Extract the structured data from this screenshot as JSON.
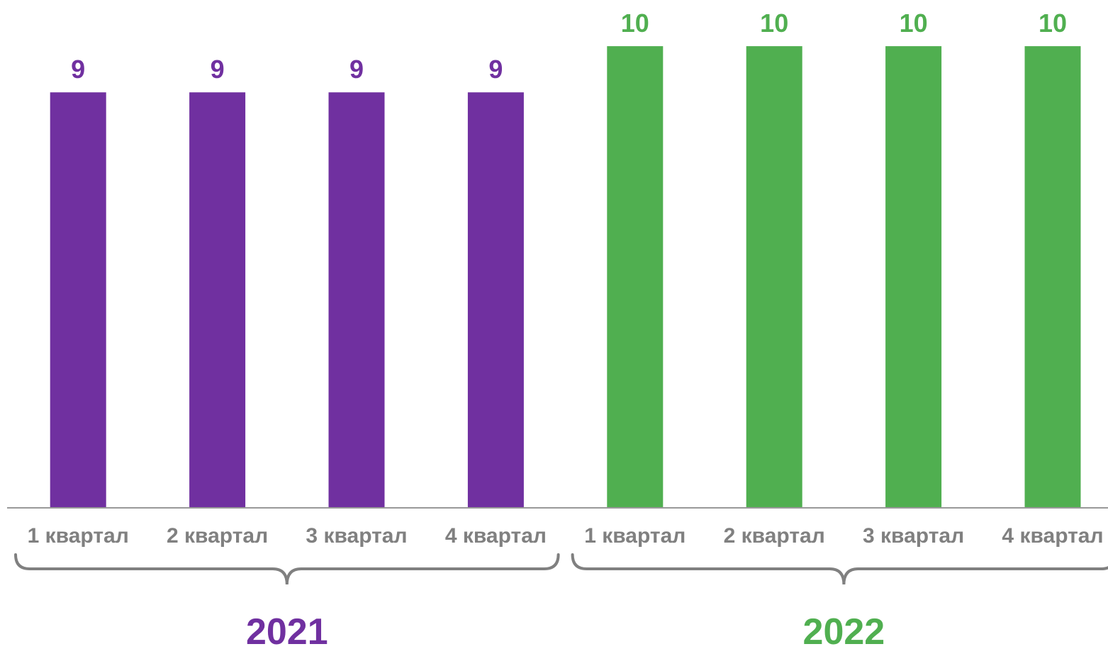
{
  "colors": {
    "series_2021": "#7030a0",
    "series_2022": "#50af50",
    "axis": "#999999",
    "category_text": "#808080",
    "brace": "#808080"
  },
  "chart_data": {
    "type": "bar",
    "title": "",
    "xlabel": "",
    "ylabel": "",
    "ylim": [
      0,
      11
    ],
    "grid": false,
    "groups": [
      {
        "year": "2021",
        "categories": [
          "1 квартал",
          "2 квартал",
          "3 квартал",
          "4 квартал"
        ],
        "values": [
          9,
          9,
          9,
          9
        ]
      },
      {
        "year": "2022",
        "categories": [
          "1 квартал",
          "2 квартал",
          "3 квартал",
          "4 квартал"
        ],
        "values": [
          10,
          10,
          10,
          10
        ]
      }
    ]
  }
}
